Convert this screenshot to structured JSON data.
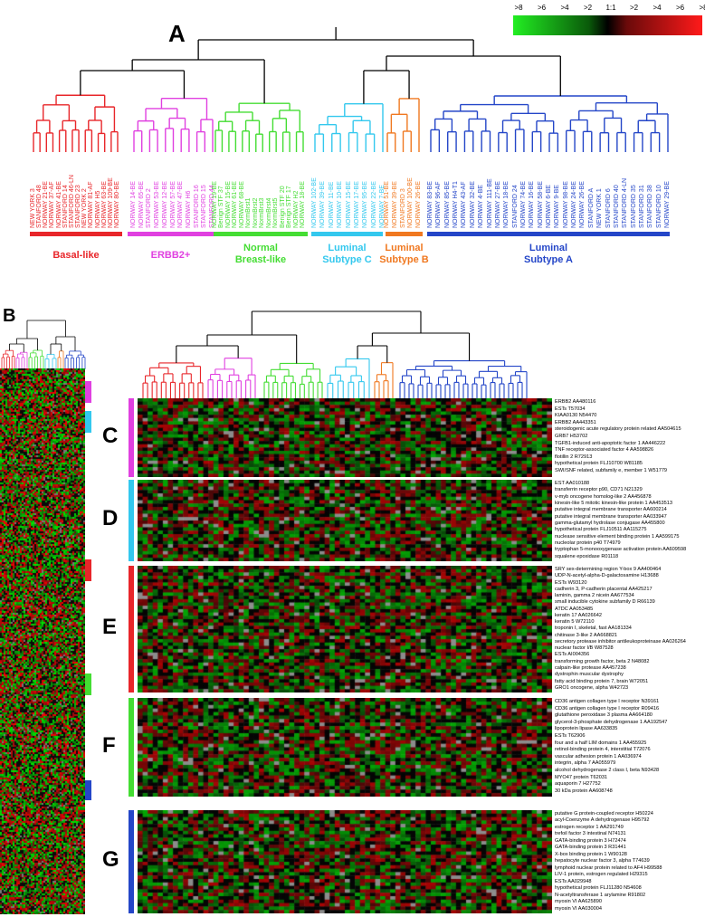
{
  "panels": {
    "a": "A",
    "b": "B"
  },
  "scale": {
    "labels": [
      ">8",
      ">6",
      ">4",
      ">2",
      "1:1",
      ">2",
      ">4",
      ">6",
      ">8"
    ],
    "colors": {
      "green": "#22ee22",
      "black": "#000000",
      "red": "#ff1a1a"
    }
  },
  "colors": {
    "basal": "#e8262a",
    "erbb2": "#e040e0",
    "normal": "#44dd33",
    "lumC": "#33c8ee",
    "lumB": "#f07820",
    "lumA": "#2446c8",
    "missing": "#8c8c8c"
  },
  "groups": [
    {
      "key": "basal",
      "name1": "Basal-like",
      "name2": ""
    },
    {
      "key": "erbb2",
      "name1": "ERBB2+",
      "name2": ""
    },
    {
      "key": "normal",
      "name1": "Normal",
      "name2": "Breast-like"
    },
    {
      "key": "lumC",
      "name1": "Luminal",
      "name2": "Subtype C"
    },
    {
      "key": "lumB",
      "name1": "Luminal",
      "name2": "Subtype B"
    },
    {
      "key": "lumA",
      "name1": "Luminal",
      "name2": "Subtype A"
    }
  ],
  "leaves": {
    "basal": [
      "NEW YORK 3",
      "STANFORD 48",
      "NORWAY 21-BE",
      "NORWAY 37-AF",
      "NORWAY 41-BE",
      "STANFORD 14",
      "STANFORD 46-LN",
      "STANFORD 23",
      "NEW YORK 2",
      "NORWAY 81-AF",
      "NORWAY H5",
      "NORWAY 63-BE",
      "NORWAY 109-BE",
      "NORWAY 80-BE"
    ],
    "erbb2": [
      "NORWAY 14-BE",
      "NORWAY 65-BE",
      "STANFORD 2",
      "NORWAY 53-BE",
      "NORWAY 12-BE",
      "NORWAY 57-BE",
      "NORWAY 47-BE",
      "NORWAY H6",
      "STANFORD 16",
      "STANFORD 15",
      "STANFORD 44"
    ],
    "normal": [
      "NORWAY 19-BE",
      "Benign STF 37",
      "NORWAY 15-BE",
      "NORWAY 61-BE",
      "NORWAY 68-BE",
      "NormBrst1",
      "NormBrst2",
      "NormBrst3",
      "NormBrst4",
      "NormBrst5",
      "Benign STF 20",
      "Benign STF 17",
      "NORWAY H2",
      "NORWAY 18-BE"
    ],
    "lumC": [
      "NORWAY 102-BE",
      "NORWAY 39-BE",
      "NORWAY 11-BE",
      "NORWAY 10-BE",
      "NORWAY 15-BE",
      "NORWAY 17-BE",
      "NORWAY 95-BE",
      "NORWAY 22-BE",
      "NORWAY 7-BE"
    ],
    "lumB": [
      "NORWAY 51-BE",
      "NORWAY 39-BE",
      "STANFORD 3",
      "NORWAY 100-BE",
      "NORWAY 26-BE"
    ],
    "lumA": [
      "NORWAY 83-BE",
      "NORWAY 96-AF",
      "NORWAY 85-BE",
      "NORWAY H4-T1",
      "NORWAY 43-AF",
      "NORWAY 32-BE",
      "NORWAY 4-BE",
      "NORWAY 111-BE",
      "NORWAY 27-BE",
      "NORWAY 18-BE",
      "STANFORD 24",
      "NORWAY 74-BE",
      "NORWAY 16-BE",
      "NORWAY 58-BE",
      "NORWAY 6-BE",
      "NORWAY 9-BE",
      "NORWAY 98-BE",
      "NORWAY 24-BE",
      "NORWAY 26-BE",
      "STANFORD A",
      "NEW YORK 1",
      "STANFORD 6",
      "STANFORD 40",
      "STANFORD 4-LN",
      "STANFORD 35",
      "STANFORD 31",
      "STANFORD 38",
      "STANFORD 10",
      "NORWAY 29-BE"
    ]
  },
  "clusters": [
    {
      "letter": "C",
      "bar": "erbb2",
      "genes": [
        "ERBB2 AA480116",
        "ESTs T57034",
        "KIAA0130 N54470",
        "ERBB2 AA443351",
        "steroidogenic acute regulatory protein related AA504615",
        "GRB7 H53702",
        "TGFB1-induced anti-apoptotic factor 1 AA446222",
        "TNF receptor-associated factor 4 AA598826",
        "flotillin 2 R72913",
        "hypothetical protein FLJ10700 W81185",
        "SWI/SNF related, subfamily e, member 1 W51779"
      ]
    },
    {
      "letter": "D",
      "bar": "lumC",
      "genes": [
        "EST AA010188",
        "transferrin receptor p90, CD71 N21329",
        "v-myb oncogene homolog-like 2 AA456878",
        "kinesin-like 5 mitotic kinesin-like protein 1 AA453513",
        "putative integral membrane transporter AA600214",
        "putative integral membrane transporter AA033947",
        "gamma-glutamyl hydrolase conjugase AA455800",
        "hypothetical protein FLJ10511 AA115275",
        "nuclease sensitive element binding protein 1 AA599175",
        "nucleolar protein p40 T74979",
        "tryptophan 5-monooxygenase activation protein AA609598",
        "squalene epoxidase R01118"
      ]
    },
    {
      "letter": "E",
      "bar": "basal",
      "genes": [
        "SRY sex-determining region Y-box 9 AA400464",
        "UDP-N-acetyl-alpha-D-galactosamine H13688",
        "ESTs W93120",
        "cadherin 3, P-cadherin placental AA425217",
        "laminin, gamma 2 nicein AA677534",
        "small inducible cytokine subfamily D R66139",
        "ATDC AA053485",
        "keratin 17 AA026642",
        "keratin 5 W72110",
        "troponin I, skeletal, fast AA181334",
        "chitinase 3-like 2 AA668821",
        "secretory protease inhibitor antileukoproteinase AA026264",
        "nuclear factor I/B W87528",
        "ESTs AI004356",
        "transforming growth factor, beta 2 N48082",
        "calpain-like protease AA457238",
        "dystrophin muscular dystrophy",
        "fatty acid binding protein 7, brain W72051",
        "GRO1 oncogene, alpha W42723"
      ]
    },
    {
      "letter": "F",
      "bar": "normal",
      "genes": [
        "CD36 antigen collagen type I receptor N39161",
        "CD36 antigen collagen type I receptor R09416",
        "glutathione peroxidase 3 plasma AA664180",
        "glycerol-3-phosphate dehydrogenase 1 AA192547",
        "lipoprotein lipase AA633835",
        "ESTs T62906",
        "four and a half LIM domains 1 AA455925",
        "retinol-binding protein 4, interstitial T72076",
        "vascular adhesion protein 1 AA036974",
        "integrin, alpha 7 AA055979",
        "alcohol dehydrogenase 2 class I, beta N93428",
        "MYO47 protein T62031",
        "aquaporin 7 H27752",
        "30 kDa protein AA608748"
      ]
    },
    {
      "letter": "G",
      "bar": "lumA",
      "genes": [
        "putative G protein-coupled receptor H50224",
        "acyl-Coenzyme A dehydrogenase H95792",
        "estrogen receptor 1 AA291749",
        "trefoil factor 3 intestinal N74131",
        "GATA-binding protein 3 H72474",
        "GATA-binding protein 3 R31441",
        "X-box binding protein 1 W90128",
        "hepatocyte nuclear factor 3, alpha T74639",
        "lymphoid nuclear protein related to AF4 H99588",
        "LIV-1 protein, estrogen regulated H29315",
        "ESTs AA029948",
        "hypothetical protein FLJ11280 N54608",
        "N-acetyltransferase 1 arylamine R91802",
        "myosin VI AA625890",
        "myosin VI AA030004"
      ]
    }
  ]
}
